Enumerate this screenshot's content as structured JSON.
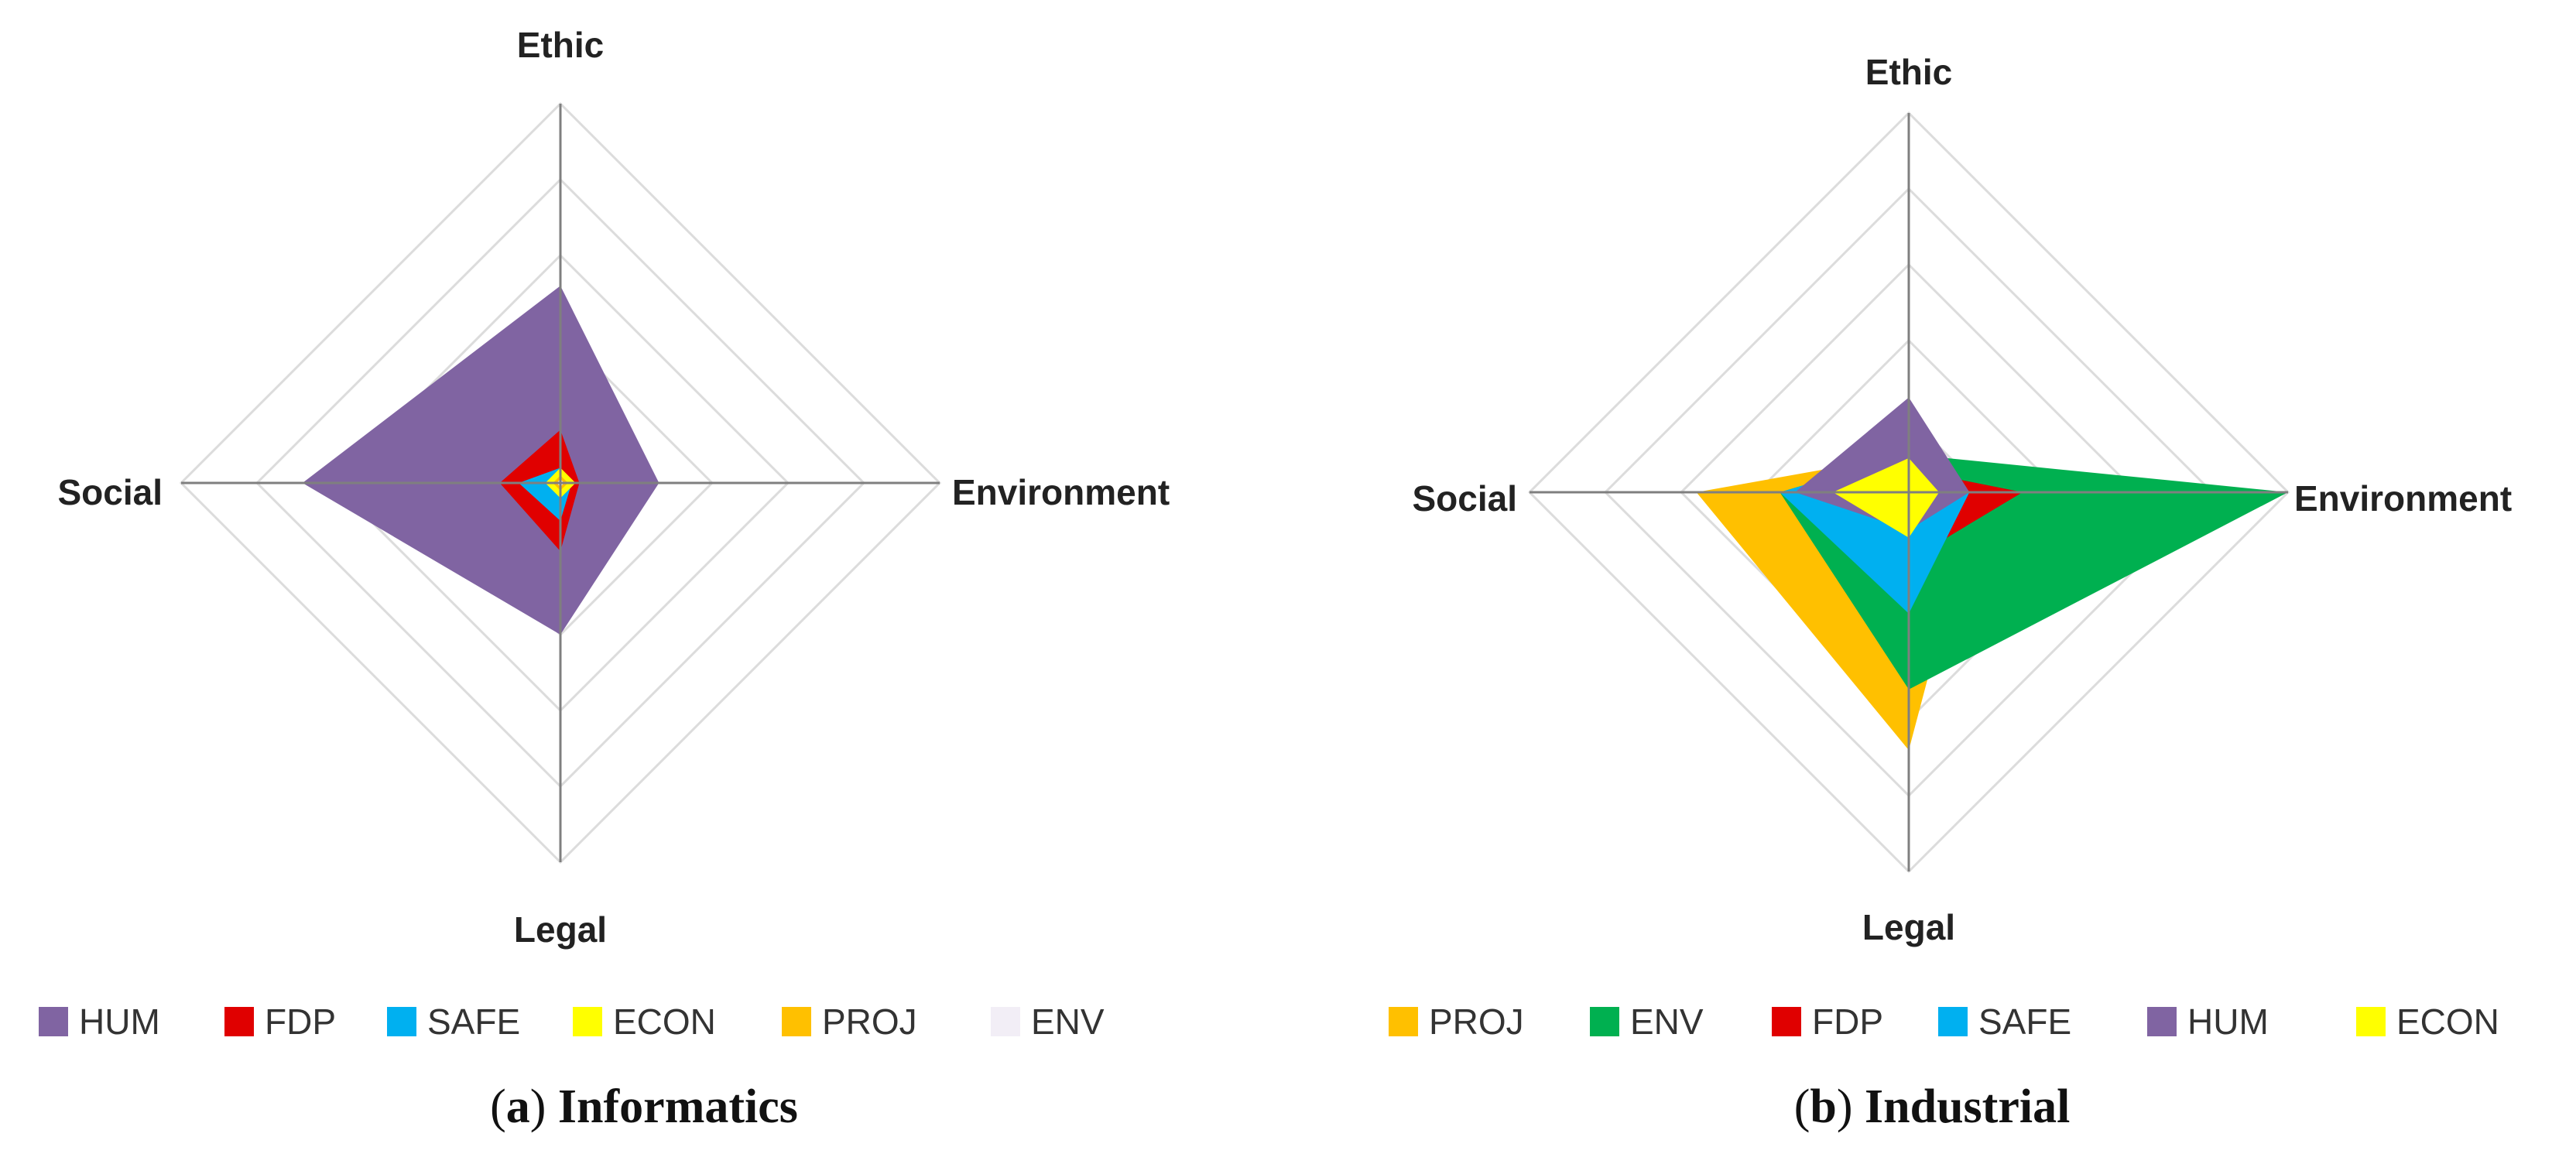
{
  "chart_data": [
    {
      "type": "radar",
      "panel_label": "a",
      "title": "Informatics",
      "axes": [
        "Ethic",
        "Environment",
        "Legal",
        "Social"
      ],
      "rmax": 5,
      "rings": 5,
      "series": [
        {
          "name": "HUM",
          "color": "#8064A2",
          "values": [
            2.6,
            1.3,
            2.0,
            3.4
          ]
        },
        {
          "name": "FDP",
          "color": "#E00000",
          "values": [
            0.7,
            0.25,
            0.9,
            0.8
          ]
        },
        {
          "name": "SAFE",
          "color": "#00B0F0",
          "values": [
            0.2,
            0.15,
            0.5,
            0.55
          ]
        },
        {
          "name": "ECON",
          "color": "#FFFF00",
          "values": [
            0.2,
            0.2,
            0.2,
            0.2
          ]
        },
        {
          "name": "PROJ",
          "color": "#FFC000",
          "values": [
            0.1,
            0.1,
            0.1,
            0.1
          ]
        },
        {
          "name": "ENV",
          "color": "#F2EEF6",
          "values": [
            0.05,
            0.05,
            0.05,
            0.05
          ]
        }
      ],
      "legend": [
        "HUM",
        "FDP",
        "SAFE",
        "ECON",
        "PROJ",
        "ENV"
      ]
    },
    {
      "type": "radar",
      "panel_label": "b",
      "title": "Industrial",
      "axes": [
        "Ethic",
        "Environment",
        "Legal",
        "Social"
      ],
      "rmax": 5,
      "rings": 5,
      "series": [
        {
          "name": "PROJ",
          "color": "#FFC000",
          "values": [
            0.5,
            0.9,
            3.4,
            2.8
          ]
        },
        {
          "name": "ENV",
          "color": "#00B050",
          "values": [
            0.5,
            5.0,
            2.6,
            1.7
          ]
        },
        {
          "name": "FDP",
          "color": "#E00000",
          "values": [
            0.3,
            1.5,
            0.9,
            0.4
          ]
        },
        {
          "name": "SAFE",
          "color": "#00B0F0",
          "values": [
            0.5,
            0.8,
            1.6,
            1.7
          ]
        },
        {
          "name": "HUM",
          "color": "#8064A2",
          "values": [
            1.25,
            0.8,
            0.5,
            1.5
          ]
        },
        {
          "name": "ECON",
          "color": "#FFFF00",
          "values": [
            0.45,
            0.4,
            0.6,
            1.0
          ]
        }
      ],
      "legend": [
        "PROJ",
        "ENV",
        "FDP",
        "SAFE",
        "HUM",
        "ECON"
      ]
    }
  ]
}
